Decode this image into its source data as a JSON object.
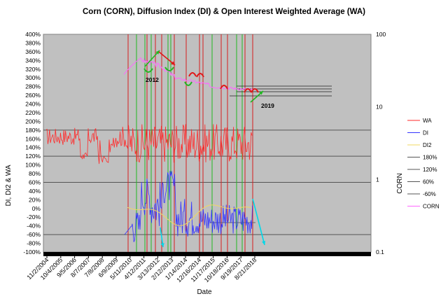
{
  "chart_data": {
    "type": "line",
    "title": "Corn (CORN), Diffusion Index (DI) & Open Interest Weighted Average (WA)",
    "xlabel": "Date",
    "ylabel": "DI, DI2 & WA",
    "y2label": "CORN",
    "y_ticks": [
      "400%",
      "380%",
      "360%",
      "340%",
      "320%",
      "300%",
      "280%",
      "260%",
      "240%",
      "220%",
      "200%",
      "180%",
      "160%",
      "140%",
      "120%",
      "100%",
      "80%",
      "60%",
      "40%",
      "20%",
      "0%",
      "-20%",
      "-40%",
      "-60%",
      "-80%",
      "-100%"
    ],
    "ylim": [
      -100,
      400
    ],
    "y2_ticks": [
      "100",
      "10",
      "1",
      "0.1"
    ],
    "y2lim": [
      0.1,
      100
    ],
    "y2_log": true,
    "x_ticks": [
      "11/2/2004",
      "10/4/2005",
      "9/5/2006",
      "8/7/2007",
      "7/8/2008",
      "6/9/2009",
      "5/11/2010",
      "4/12/2011",
      "3/13/2012",
      "2/12/2013",
      "1/14/2014",
      "12/16/2014",
      "11/17/2015",
      "10/18/2016",
      "9/19/2017",
      "8/21/2018"
    ],
    "grid": "horizontal",
    "legend_position": "right",
    "reference_lines": [
      {
        "name": "180%",
        "value": 180
      },
      {
        "name": "120%",
        "value": 120
      },
      {
        "name": "60%",
        "value": 60
      },
      {
        "name": "-60%",
        "value": -60
      }
    ],
    "series": [
      {
        "name": "WA",
        "color": "#ff2a2a"
      },
      {
        "name": "DI",
        "color": "#3333ff"
      },
      {
        "name": "DI2",
        "color": "#f0d860"
      },
      {
        "name": "180%",
        "color": "#555555"
      },
      {
        "name": "120%",
        "color": "#555555"
      },
      {
        "name": "60%",
        "color": "#555555"
      },
      {
        "name": "-60%",
        "color": "#555555"
      },
      {
        "name": "CORN",
        "color": "#ff66ff"
      }
    ],
    "annotations": [
      {
        "text": "2012"
      },
      {
        "text": "2019"
      }
    ]
  }
}
